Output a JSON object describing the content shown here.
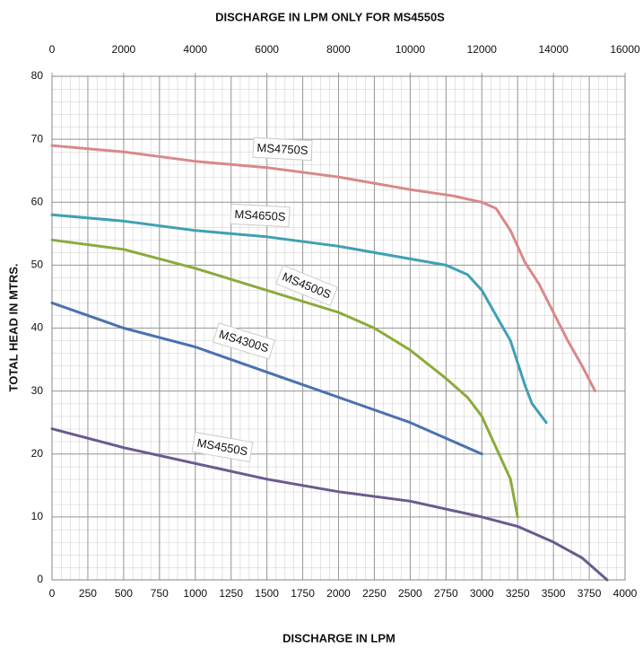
{
  "chart_data": {
    "type": "line",
    "xlabel": "DISCHARGE IN LPM",
    "x2label": "DISCHARGE IN LPM ONLY FOR MS4550S",
    "ylabel": "TOTAL HEAD IN MTRS.",
    "xlim": [
      0,
      4000
    ],
    "xticks": [
      0,
      250,
      500,
      750,
      1000,
      1250,
      1500,
      1750,
      2000,
      2250,
      2500,
      2750,
      3000,
      3250,
      3500,
      3750,
      4000
    ],
    "x2lim": [
      0,
      16000
    ],
    "x2ticks": [
      0,
      2000,
      4000,
      6000,
      8000,
      10000,
      12000,
      14000,
      16000
    ],
    "ylim": [
      0,
      80
    ],
    "yticks": [
      0,
      10,
      20,
      30,
      40,
      50,
      60,
      70,
      80
    ],
    "grid": true,
    "series": [
      {
        "name": "MS4750S",
        "color": "#d9888a",
        "x": [
          0,
          500,
          1000,
          1500,
          2000,
          2500,
          2800,
          3000,
          3100,
          3200,
          3300,
          3400,
          3500,
          3600,
          3700,
          3790
        ],
        "values": [
          69,
          68,
          66.5,
          65.5,
          64,
          62,
          61,
          60,
          59,
          55.5,
          50.5,
          47,
          42.5,
          38,
          34,
          30
        ]
      },
      {
        "name": "MS4650S",
        "color": "#3fa0b5",
        "x": [
          0,
          500,
          1000,
          1500,
          2000,
          2500,
          2750,
          2900,
          3000,
          3100,
          3200,
          3300,
          3350,
          3450
        ],
        "values": [
          58,
          57,
          55.5,
          54.5,
          53,
          51,
          50,
          48.5,
          46,
          42,
          38,
          31,
          28,
          25
        ]
      },
      {
        "name": "MS4500S",
        "color": "#8aab3b",
        "x": [
          0,
          500,
          1000,
          1500,
          2000,
          2250,
          2500,
          2750,
          2900,
          3000,
          3100,
          3200,
          3250
        ],
        "values": [
          54,
          52.5,
          49.5,
          46,
          42.5,
          40,
          36.5,
          32,
          29,
          26,
          21,
          16,
          10
        ]
      },
      {
        "name": "MS4300S",
        "color": "#4a72b0",
        "x": [
          0,
          500,
          1000,
          1500,
          2000,
          2500,
          3000
        ],
        "values": [
          44,
          40,
          37,
          33,
          29,
          25,
          20
        ]
      },
      {
        "name": "MS4550S",
        "color": "#6b5a8e",
        "axis": "x2",
        "x": [
          0,
          2000,
          4000,
          6000,
          8000,
          10000,
          12000,
          13000,
          14000,
          14800,
          15500
        ],
        "values": [
          24,
          21,
          18.5,
          16,
          14,
          12.5,
          10,
          8.5,
          6,
          3.5,
          0
        ]
      }
    ]
  }
}
